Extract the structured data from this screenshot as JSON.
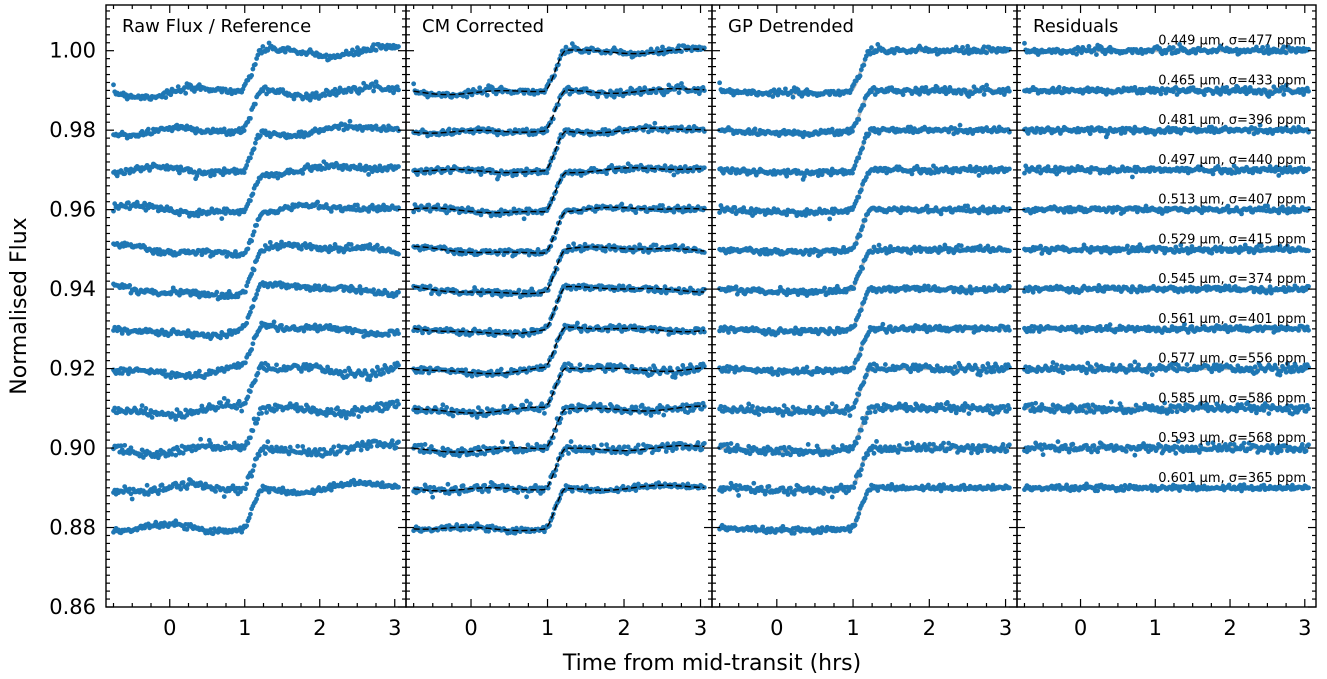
{
  "chart_data": {
    "type": "scatter",
    "xlabel": "Time from mid-transit (hrs)",
    "ylabel": "Normalised Flux",
    "xlim": [
      -0.85,
      3.15
    ],
    "ylim": [
      0.86,
      1.0115
    ],
    "xticks": [
      0,
      1,
      2,
      3
    ],
    "xtick_labels": [
      "0",
      "1",
      "2",
      "3"
    ],
    "yticks": [
      0.86,
      0.88,
      0.9,
      0.92,
      0.94,
      0.96,
      0.98,
      1.0
    ],
    "ytick_labels": [
      "0.86",
      "0.88",
      "0.90",
      "0.92",
      "0.94",
      "0.96",
      "0.98",
      "1.00"
    ],
    "grid": false,
    "marker_color": "#1f77b4",
    "model_color": "#000000",
    "gp_model_color": "#b0b0b0",
    "transit_model": {
      "depth": 0.0095,
      "egress_start": 0.95,
      "egress_end": 1.25,
      "time_range": [
        -0.75,
        3.05
      ],
      "n_points": 230
    },
    "spectroscopic_channels": [
      {
        "wavelength_um": 0.449,
        "rms_ppm": 477,
        "out_of_transit_level": 1.0
      },
      {
        "wavelength_um": 0.465,
        "rms_ppm": 433,
        "out_of_transit_level": 0.99
      },
      {
        "wavelength_um": 0.481,
        "rms_ppm": 396,
        "out_of_transit_level": 0.98
      },
      {
        "wavelength_um": 0.497,
        "rms_ppm": 440,
        "out_of_transit_level": 0.97
      },
      {
        "wavelength_um": 0.513,
        "rms_ppm": 407,
        "out_of_transit_level": 0.96
      },
      {
        "wavelength_um": 0.529,
        "rms_ppm": 415,
        "out_of_transit_level": 0.95
      },
      {
        "wavelength_um": 0.545,
        "rms_ppm": 374,
        "out_of_transit_level": 0.94
      },
      {
        "wavelength_um": 0.561,
        "rms_ppm": 401,
        "out_of_transit_level": 0.93
      },
      {
        "wavelength_um": 0.577,
        "rms_ppm": 556,
        "out_of_transit_level": 0.92
      },
      {
        "wavelength_um": 0.585,
        "rms_ppm": 586,
        "out_of_transit_level": 0.91
      },
      {
        "wavelength_um": 0.593,
        "rms_ppm": 568,
        "out_of_transit_level": 0.9
      },
      {
        "wavelength_um": 0.601,
        "rms_ppm": 365,
        "out_of_transit_level": 0.89
      }
    ],
    "panels": [
      {
        "title": "Raw Flux / Reference",
        "content": "raw",
        "show_model": "none",
        "show_yticks": true
      },
      {
        "title": "CM Corrected",
        "content": "corrected",
        "show_model": "black-dashed",
        "show_yticks": false
      },
      {
        "title": "GP Detrended",
        "content": "detrended",
        "show_model": "grey-band",
        "show_yticks": false
      },
      {
        "title": "Residuals",
        "content": "residuals",
        "show_model": "grey-band",
        "show_yticks": false
      }
    ],
    "residual_label_texts": [
      "0.449 μm, σ=477 ppm",
      "0.465 μm, σ=433 ppm",
      "0.481 μm, σ=396 ppm",
      "0.497 μm, σ=440 ppm",
      "0.513 μm, σ=407 ppm",
      "0.529 μm, σ=415 ppm",
      "0.545 μm, σ=374 ppm",
      "0.561 μm, σ=401 ppm",
      "0.577 μm, σ=556 ppm",
      "0.585 μm, σ=586 ppm",
      "0.593 μm, σ=568 ppm",
      "0.601 μm, σ=365 ppm"
    ]
  }
}
